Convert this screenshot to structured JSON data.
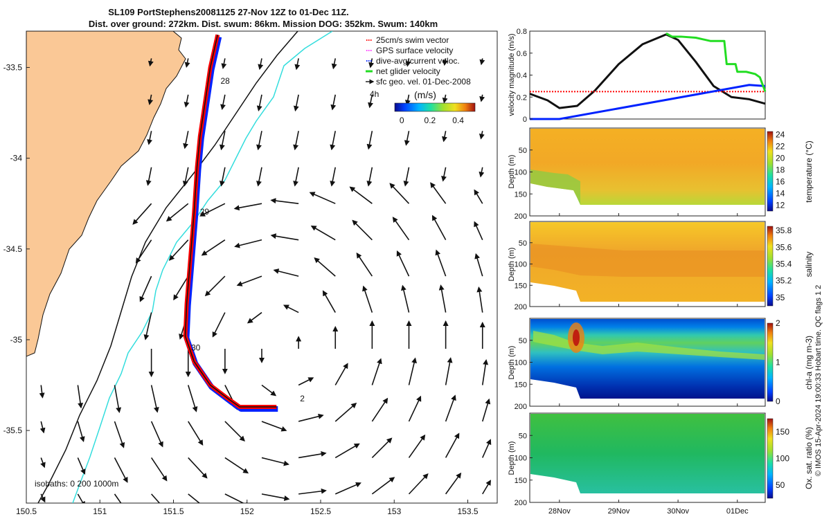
{
  "title": {
    "line1": "SL109 PortStephens20081125 27-Nov 12Z to 01-Dec 11Z.",
    "line2": "Dist. over ground: 272km. Dist. swum: 86km. Mission DOG: 352km. Swum: 140km"
  },
  "colors": {
    "land": "#fac896",
    "coast": "#111111",
    "isobath200": "#111111",
    "isobath1000": "#33dddd",
    "track_red": "#ff0000",
    "track_blue": "#0022ff",
    "net_green": "#22dd22",
    "speed_black": "#111111"
  },
  "chart_data": [
    {
      "type": "map-quiver",
      "xlim": [
        150.5,
        153.7
      ],
      "ylim": [
        -35.9,
        -33.3
      ],
      "x_ticks": [
        "150.5",
        "151",
        "151.5",
        "152",
        "152.5",
        "153",
        "153.5"
      ],
      "x_tick_values": [
        150.5,
        151,
        151.5,
        152,
        152.5,
        153,
        153.5
      ],
      "y_ticks": [
        "-33.5",
        "-34",
        "-34.5",
        "-35",
        "-35.5"
      ],
      "y_tick_values": [
        -33.5,
        -34,
        -34.5,
        -35,
        -35.5
      ],
      "legend": [
        {
          "label": "25cm/s swim vector",
          "color": "#ff0000",
          "style": "dot"
        },
        {
          "label": "GPS surface velocity",
          "color": "#ff33ff",
          "style": "dot"
        },
        {
          "label": "dive-avg current veloc.",
          "color": "#0022ff",
          "style": "dot"
        },
        {
          "label": "net glider velocity",
          "color": "#22dd22",
          "style": "line"
        },
        {
          "label": "sfc geo. vel. 01-Dec-2008",
          "color": "#111111",
          "style": "arrow"
        }
      ],
      "legend_position": "top-right",
      "hour_label": "4h",
      "colorbar": {
        "label": "(m/s)",
        "ticks": [
          "0",
          "0.2",
          "0.4"
        ],
        "tick_values": [
          0,
          0.2,
          0.4
        ],
        "range": [
          -0.05,
          0.52
        ]
      },
      "track": [
        [
          151.8,
          -33.32
        ],
        [
          151.75,
          -33.5
        ],
        [
          151.68,
          -33.88
        ],
        [
          151.66,
          -34.05
        ],
        [
          151.64,
          -34.3
        ],
        [
          151.61,
          -34.6
        ],
        [
          151.59,
          -34.8
        ],
        [
          151.58,
          -34.98
        ],
        [
          151.64,
          -35.12
        ],
        [
          151.75,
          -35.25
        ],
        [
          151.88,
          -35.33
        ],
        [
          151.95,
          -35.37
        ],
        [
          152.2,
          -35.37
        ]
      ],
      "day_labels": [
        {
          "text": "28",
          "lon": 151.82,
          "lat": -33.59
        },
        {
          "text": "29",
          "lon": 151.68,
          "lat": -34.31
        },
        {
          "text": "30",
          "lon": 151.62,
          "lat": -35.06
        },
        {
          "text": "2",
          "lon": 152.36,
          "lat": -35.34
        }
      ],
      "isobath_note": "isobaths: 0   200  1000m"
    },
    {
      "type": "line",
      "ylabel": "velocity magnitude (m/s)",
      "ylim": [
        0,
        0.8
      ],
      "y_ticks": [
        "0",
        "0.2",
        "0.4",
        "0.6",
        "0.8"
      ],
      "y_tick_values": [
        0,
        0.2,
        0.4,
        0.6,
        0.8
      ],
      "xlim": [
        27.5,
        31.47
      ],
      "series": [
        {
          "name": "surface speed",
          "color": "#111111",
          "x": [
            27.5,
            27.8,
            28.0,
            28.3,
            28.6,
            29.0,
            29.4,
            29.8,
            30.0,
            30.3,
            30.6,
            30.9,
            31.2,
            31.47
          ],
          "values": [
            0.23,
            0.17,
            0.1,
            0.12,
            0.26,
            0.5,
            0.68,
            0.77,
            0.72,
            0.52,
            0.3,
            0.2,
            0.18,
            0.14
          ]
        },
        {
          "name": "swim speed",
          "color": "#ff0000",
          "x": [
            27.5,
            31.47
          ],
          "values": [
            0.25,
            0.25
          ]
        },
        {
          "name": "dive-avg current",
          "color": "#0022ff",
          "x": [
            27.5,
            28.0,
            31.2,
            31.47
          ],
          "values": [
            0.0,
            0.0,
            0.31,
            0.3
          ]
        },
        {
          "name": "net glider velocity",
          "color": "#22dd22",
          "x": [
            29.8,
            29.9,
            30.05,
            30.3,
            30.55,
            30.7,
            30.78,
            30.82,
            30.97,
            31.0,
            31.15,
            31.3,
            31.38,
            31.47
          ],
          "values": [
            0.78,
            0.75,
            0.75,
            0.74,
            0.71,
            0.71,
            0.71,
            0.5,
            0.5,
            0.43,
            0.43,
            0.41,
            0.38,
            0.25
          ]
        }
      ]
    },
    {
      "type": "heatmap",
      "ylabel": "Depth (m)",
      "cbar_label": "temperature (°C)",
      "cbar_ticks": [
        "12",
        "14",
        "16",
        "18",
        "20",
        "22",
        "24"
      ],
      "cbar_range": [
        11,
        24.5
      ],
      "ylim": [
        200,
        0
      ]
    },
    {
      "type": "heatmap",
      "ylabel": "Depth (m)",
      "cbar_label": "salinity",
      "cbar_ticks": [
        "35",
        "35.2",
        "35.4",
        "35.6",
        "35.8"
      ],
      "cbar_range": [
        34.9,
        35.85
      ],
      "ylim": [
        200,
        0
      ]
    },
    {
      "type": "heatmap",
      "ylabel": "Depth (m)",
      "cbar_label": "chl-a (mg m-3)",
      "cbar_ticks": [
        "0",
        "1",
        "2"
      ],
      "cbar_range": [
        0,
        2
      ],
      "ylim": [
        200,
        0
      ]
    },
    {
      "type": "heatmap",
      "ylabel": "Depth (m)",
      "cbar_label": "Ox. sat. ratio (%)",
      "cbar_ticks": [
        "50",
        "100",
        "150"
      ],
      "cbar_range": [
        25,
        175
      ],
      "ylim": [
        200,
        0
      ],
      "x_ticks": [
        "28Nov",
        "29Nov",
        "30Nov",
        "01Dec"
      ],
      "x_tick_values": [
        28,
        29,
        30,
        31
      ]
    }
  ],
  "depth_ticks": [
    "50",
    "100",
    "150",
    "200"
  ],
  "depth_tick_values": [
    50,
    100,
    150,
    200
  ],
  "side_note": "© IMOS 15-Apr-2024 19:00:33 Hobart time. QC flags 1  2"
}
